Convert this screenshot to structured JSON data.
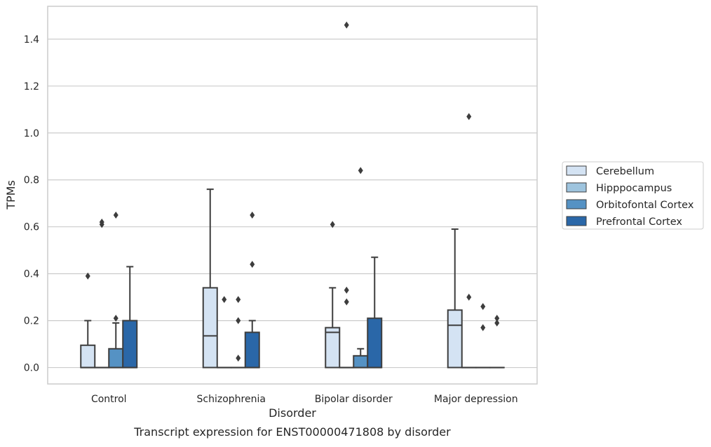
{
  "chart_data": {
    "type": "box",
    "caption": "Transcript expression for ENST00000471808 by disorder",
    "xlabel": "Disorder",
    "ylabel": "TPMs",
    "ylim": [
      -0.07,
      1.54
    ],
    "yticks": [
      0.0,
      0.2,
      0.4,
      0.6,
      0.8,
      1.0,
      1.2,
      1.4
    ],
    "ytick_labels": [
      "0.0",
      "0.2",
      "0.4",
      "0.6",
      "0.8",
      "1.0",
      "1.2",
      "1.4"
    ],
    "grid": "horizontal",
    "legend_position": "right",
    "categories": [
      "Control",
      "Schizophrenia",
      "Bipolar disorder",
      "Major depression"
    ],
    "series": [
      {
        "name": "Cerebellum",
        "color": "#d4e3f3",
        "boxes": [
          {
            "q1": 0.0,
            "median": 0.0,
            "q3": 0.095,
            "whisker_low": 0.0,
            "whisker_high": 0.2,
            "outliers": [
              0.39
            ]
          },
          {
            "q1": 0.0,
            "median": 0.135,
            "q3": 0.34,
            "whisker_low": 0.0,
            "whisker_high": 0.76,
            "outliers": []
          },
          {
            "q1": 0.0,
            "median": 0.15,
            "q3": 0.17,
            "whisker_low": 0.0,
            "whisker_high": 0.34,
            "outliers": [
              0.61
            ]
          },
          {
            "q1": 0.0,
            "median": 0.18,
            "q3": 0.245,
            "whisker_low": 0.0,
            "whisker_high": 0.59,
            "outliers": []
          }
        ]
      },
      {
        "name": "Hipppocampus",
        "color": "#9ec4de",
        "boxes": [
          {
            "q1": 0.0,
            "median": 0.0,
            "q3": 0.0,
            "whisker_low": 0.0,
            "whisker_high": 0.0,
            "outliers": [
              0.61,
              0.62
            ]
          },
          {
            "q1": 0.0,
            "median": 0.0,
            "q3": 0.0,
            "whisker_low": 0.0,
            "whisker_high": 0.0,
            "outliers": [
              0.29
            ]
          },
          {
            "q1": 0.0,
            "median": 0.0,
            "q3": 0.0,
            "whisker_low": 0.0,
            "whisker_high": 0.0,
            "outliers": [
              1.46,
              0.33,
              0.28
            ]
          },
          {
            "q1": 0.0,
            "median": 0.0,
            "q3": 0.0,
            "whisker_low": 0.0,
            "whisker_high": 0.0,
            "outliers": [
              1.07,
              0.3
            ]
          }
        ]
      },
      {
        "name": "Orbitofontal Cortex",
        "color": "#5592c4",
        "boxes": [
          {
            "q1": 0.0,
            "median": 0.0,
            "q3": 0.08,
            "whisker_low": 0.0,
            "whisker_high": 0.19,
            "outliers": [
              0.65,
              0.21
            ]
          },
          {
            "q1": 0.0,
            "median": 0.0,
            "q3": 0.0,
            "whisker_low": 0.0,
            "whisker_high": 0.0,
            "outliers": [
              0.29,
              0.2,
              0.04
            ]
          },
          {
            "q1": 0.0,
            "median": 0.0,
            "q3": 0.05,
            "whisker_low": 0.0,
            "whisker_high": 0.08,
            "outliers": [
              0.84
            ]
          },
          {
            "q1": 0.0,
            "median": 0.0,
            "q3": 0.0,
            "whisker_low": 0.0,
            "whisker_high": 0.0,
            "outliers": [
              0.26,
              0.17
            ]
          }
        ]
      },
      {
        "name": "Prefrontal Cortex",
        "color": "#2a67a8",
        "boxes": [
          {
            "q1": 0.0,
            "median": 0.0,
            "q3": 0.2,
            "whisker_low": 0.0,
            "whisker_high": 0.43,
            "outliers": []
          },
          {
            "q1": 0.0,
            "median": 0.0,
            "q3": 0.15,
            "whisker_low": 0.0,
            "whisker_high": 0.2,
            "outliers": [
              0.65,
              0.44
            ]
          },
          {
            "q1": 0.0,
            "median": 0.0,
            "q3": 0.21,
            "whisker_low": 0.0,
            "whisker_high": 0.47,
            "outliers": []
          },
          {
            "q1": 0.0,
            "median": 0.0,
            "q3": 0.0,
            "whisker_low": 0.0,
            "whisker_high": 0.0,
            "outliers": [
              0.21,
              0.19
            ]
          }
        ]
      }
    ]
  }
}
